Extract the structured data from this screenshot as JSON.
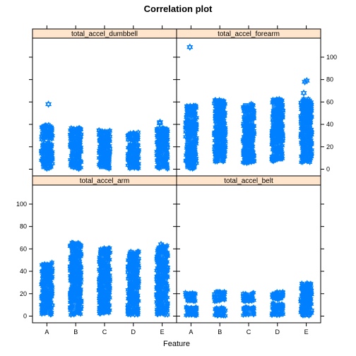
{
  "chart_data": {
    "type": "scatter",
    "title": "Correlation plot",
    "xlabel": "Feature",
    "ylabel": "",
    "categories": [
      "A",
      "B",
      "C",
      "D",
      "E"
    ],
    "ylim": [
      -6,
      117
    ],
    "yticks": [
      0,
      20,
      40,
      60,
      80,
      100
    ],
    "point_color": "#0080ff",
    "strip_color": "#ffe5cc",
    "panels": [
      {
        "name": "total_accel_dumbbell",
        "row": 0,
        "col": 0,
        "yaxis_side": "none",
        "groups": [
          {
            "category": "A",
            "segments": [
              [
                0,
                24
              ],
              [
                26,
                40
              ]
            ],
            "outliers": [
              58
            ]
          },
          {
            "category": "B",
            "segments": [
              [
                0,
                37
              ]
            ],
            "outliers": []
          },
          {
            "category": "C",
            "segments": [
              [
                0,
                35
              ]
            ],
            "outliers": []
          },
          {
            "category": "D",
            "segments": [
              [
                0,
                23
              ],
              [
                25,
                33
              ]
            ],
            "outliers": []
          },
          {
            "category": "E",
            "segments": [
              [
                0,
                37
              ]
            ],
            "outliers": [
              41,
              42
            ]
          }
        ]
      },
      {
        "name": "total_accel_forearm",
        "row": 0,
        "col": 1,
        "yaxis_side": "right",
        "groups": [
          {
            "category": "A",
            "segments": [
              [
                0,
                57
              ]
            ],
            "outliers": [
              109
            ]
          },
          {
            "category": "B",
            "segments": [
              [
                6,
                62
              ]
            ],
            "outliers": []
          },
          {
            "category": "C",
            "segments": [
              [
                5,
                59
              ]
            ],
            "outliers": []
          },
          {
            "category": "D",
            "segments": [
              [
                7,
                63
              ]
            ],
            "outliers": []
          },
          {
            "category": "E",
            "segments": [
              [
                6,
                63
              ]
            ],
            "outliers": [
              68,
              79,
              78
            ]
          }
        ]
      },
      {
        "name": "total_accel_arm",
        "row": 1,
        "col": 0,
        "yaxis_side": "left",
        "groups": [
          {
            "category": "A",
            "segments": [
              [
                1,
                48
              ]
            ],
            "outliers": []
          },
          {
            "category": "B",
            "segments": [
              [
                1,
                66
              ]
            ],
            "outliers": []
          },
          {
            "category": "C",
            "segments": [
              [
                2,
                61
              ]
            ],
            "outliers": []
          },
          {
            "category": "D",
            "segments": [
              [
                1,
                58
              ]
            ],
            "outliers": []
          },
          {
            "category": "E",
            "segments": [
              [
                1,
                63
              ]
            ],
            "outliers": [
              64
            ]
          }
        ]
      },
      {
        "name": "total_accel_belt",
        "row": 1,
        "col": 1,
        "yaxis_side": "none",
        "groups": [
          {
            "category": "A",
            "segments": [
              [
                0,
                9
              ],
              [
                13,
                22
              ]
            ],
            "outliers": []
          },
          {
            "category": "B",
            "segments": [
              [
                0,
                8
              ],
              [
                13,
                22
              ]
            ],
            "outliers": []
          },
          {
            "category": "C",
            "segments": [
              [
                0,
                8
              ],
              [
                13,
                21
              ]
            ],
            "outliers": []
          },
          {
            "category": "D",
            "segments": [
              [
                0,
                12
              ],
              [
                14,
                22
              ]
            ],
            "outliers": []
          },
          {
            "category": "E",
            "segments": [
              [
                0,
                30
              ]
            ],
            "outliers": []
          }
        ]
      }
    ]
  }
}
